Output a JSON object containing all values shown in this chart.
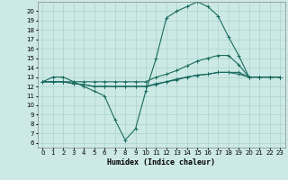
{
  "title": "",
  "xlabel": "Humidex (Indice chaleur)",
  "ylabel": "",
  "xlim": [
    -0.5,
    23.5
  ],
  "ylim": [
    5.5,
    21.0
  ],
  "yticks": [
    6,
    7,
    8,
    9,
    10,
    11,
    12,
    13,
    14,
    15,
    16,
    17,
    18,
    19,
    20
  ],
  "xticks": [
    0,
    1,
    2,
    3,
    4,
    5,
    6,
    7,
    8,
    9,
    10,
    11,
    12,
    13,
    14,
    15,
    16,
    17,
    18,
    19,
    20,
    21,
    22,
    23
  ],
  "bg_color": "#cce9e5",
  "grid_color": "#aad4cf",
  "line_color": "#1a6b60",
  "line1_x": [
    0,
    1,
    2,
    3,
    4,
    5,
    6,
    7,
    8,
    9,
    10,
    11,
    12,
    13,
    14,
    15,
    16,
    17,
    18,
    19,
    20,
    21,
    22,
    23
  ],
  "line1_y": [
    12.5,
    13.0,
    13.0,
    12.5,
    12.0,
    11.5,
    11.0,
    8.5,
    6.3,
    7.5,
    11.5,
    15.0,
    19.3,
    20.0,
    20.5,
    21.0,
    20.5,
    19.5,
    17.3,
    15.3,
    13.0,
    13.0,
    13.0,
    13.0
  ],
  "line2_x": [
    0,
    1,
    2,
    3,
    4,
    5,
    6,
    7,
    8,
    9,
    10,
    11,
    12,
    13,
    14,
    15,
    16,
    17,
    18,
    19,
    20,
    21,
    22,
    23
  ],
  "line2_y": [
    12.5,
    12.5,
    12.5,
    12.5,
    12.5,
    12.5,
    12.5,
    12.5,
    12.5,
    12.5,
    12.5,
    13.0,
    13.3,
    13.7,
    14.2,
    14.7,
    15.0,
    15.3,
    15.3,
    14.3,
    13.0,
    13.0,
    13.0,
    13.0
  ],
  "line3_x": [
    0,
    1,
    2,
    3,
    4,
    5,
    6,
    7,
    8,
    9,
    10,
    11,
    12,
    13,
    14,
    15,
    16,
    17,
    18,
    19,
    20,
    21,
    22,
    23
  ],
  "line3_y": [
    12.5,
    12.5,
    12.5,
    12.3,
    12.2,
    12.0,
    12.0,
    12.0,
    12.0,
    12.0,
    12.0,
    12.3,
    12.5,
    12.7,
    13.0,
    13.2,
    13.3,
    13.5,
    13.5,
    13.5,
    13.0,
    13.0,
    13.0,
    13.0
  ],
  "line4_x": [
    0,
    1,
    2,
    3,
    4,
    5,
    6,
    7,
    8,
    9,
    10,
    11,
    12,
    13,
    14,
    15,
    16,
    17,
    18,
    19,
    20,
    21,
    22,
    23
  ],
  "line4_y": [
    12.5,
    12.5,
    12.5,
    12.3,
    12.2,
    12.0,
    12.0,
    12.0,
    12.0,
    12.0,
    12.0,
    12.2,
    12.5,
    12.8,
    13.0,
    13.2,
    13.3,
    13.5,
    13.5,
    13.3,
    13.0,
    13.0,
    13.0,
    13.0
  ],
  "marker": "+",
  "markersize": 3,
  "linewidth": 0.8,
  "axis_fontsize": 6,
  "tick_fontsize": 5
}
